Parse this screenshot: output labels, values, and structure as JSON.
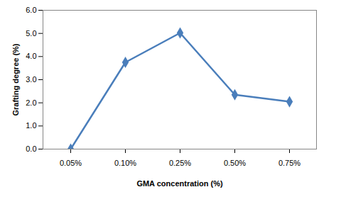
{
  "chart_data": {
    "type": "line",
    "x_label": "GMA concentration (%)",
    "y_label": "Grafting degree (%)",
    "categories": [
      "0.05%",
      "0.10%",
      "0.25%",
      "0.50%",
      "0.75%"
    ],
    "values": [
      0,
      3.75,
      5.02,
      2.35,
      2.05
    ],
    "color": "#4a7ebb",
    "marker": "diamond",
    "ylim": [
      0,
      6
    ],
    "yticks": [
      0,
      1,
      2,
      3,
      4,
      5,
      6
    ],
    "grid": false
  }
}
